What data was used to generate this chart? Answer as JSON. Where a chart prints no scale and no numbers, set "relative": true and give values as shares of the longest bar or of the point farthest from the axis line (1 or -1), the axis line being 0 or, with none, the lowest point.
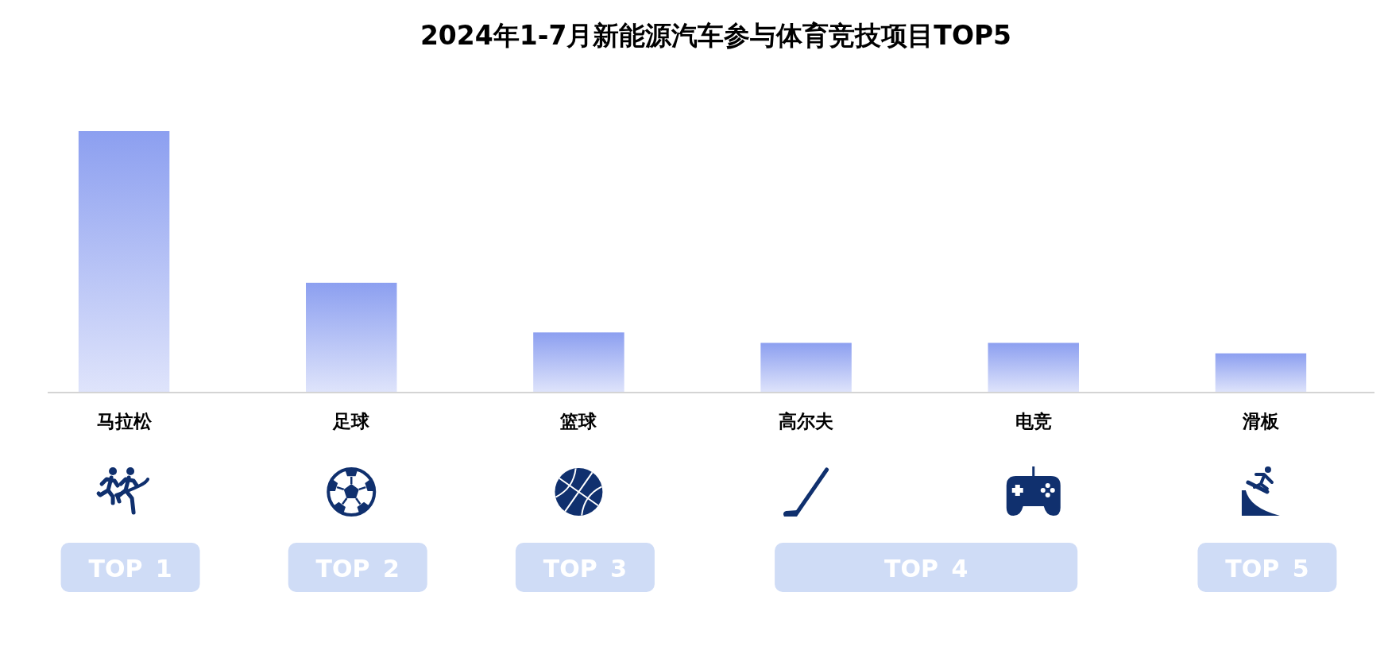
{
  "chart_data": {
    "type": "bar",
    "title": "2024年1-7月新能源汽车参与体育竞技项目TOP5",
    "categories": [
      "马拉松",
      "足球",
      "篮球",
      "高尔夫",
      "电竞",
      "滑板"
    ],
    "values": [
      1,
      0.42,
      0.23,
      0.19,
      0.19,
      0.15
    ],
    "color": "#8c9ff0",
    "relative": true,
    "annotations": [
      "TOP 1",
      "TOP 2",
      "TOP 3",
      "TOP 4",
      "TOP 5"
    ]
  }
}
